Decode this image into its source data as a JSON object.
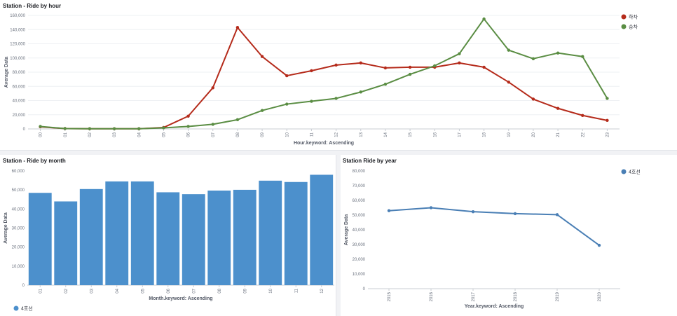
{
  "panels": {
    "hour": {
      "title": "Station - Ride by hour"
    },
    "month": {
      "title": "Station - Ride by month"
    },
    "year": {
      "title": "Station Ride by year"
    }
  },
  "chart_data": [
    {
      "type": "line",
      "title": "Station - Ride by hour",
      "xlabel": "Hour.keyword: Ascending",
      "ylabel": "Average Data",
      "categories": [
        "00",
        "01",
        "02",
        "03",
        "04",
        "05",
        "06",
        "07",
        "08",
        "09",
        "10",
        "11",
        "12",
        "13",
        "14",
        "15",
        "16",
        "17",
        "18",
        "19",
        "20",
        "21",
        "22",
        "23"
      ],
      "ylim": [
        0,
        160000
      ],
      "yticks": [
        0,
        20000,
        40000,
        60000,
        80000,
        100000,
        120000,
        140000,
        160000
      ],
      "ytick_labels": [
        "0",
        "20,000",
        "40,000",
        "60,000",
        "80,000",
        "100,000",
        "120,000",
        "140,000",
        "160,000"
      ],
      "grid": true,
      "legend": "top-right",
      "series": [
        {
          "name": "하차",
          "color": "#b52b1b",
          "values": [
            3000,
            500,
            300,
            300,
            300,
            2000,
            18000,
            58000,
            143000,
            102000,
            75000,
            82000,
            90000,
            93000,
            86000,
            87000,
            87000,
            93000,
            87000,
            66000,
            42000,
            29000,
            19000,
            12000
          ]
        },
        {
          "name": "승차",
          "color": "#5a8d43",
          "values": [
            3500,
            500,
            300,
            300,
            300,
            1500,
            3500,
            6500,
            13000,
            26000,
            35000,
            39000,
            43000,
            52000,
            63000,
            77000,
            89000,
            106000,
            155000,
            111000,
            99000,
            107000,
            102000,
            43000
          ]
        }
      ]
    },
    {
      "type": "bar",
      "title": "Station - Ride by month",
      "xlabel": "Month.keyword: Ascending",
      "ylabel": "Average Data",
      "categories": [
        "01",
        "02",
        "03",
        "04",
        "05",
        "06",
        "07",
        "08",
        "09",
        "10",
        "11",
        "12"
      ],
      "ylim": [
        0,
        60000
      ],
      "yticks": [
        0,
        10000,
        20000,
        30000,
        40000,
        50000,
        60000
      ],
      "ytick_labels": [
        "0",
        "10,000",
        "20,000",
        "30,000",
        "40,000",
        "50,000",
        "60,000"
      ],
      "grid": false,
      "legend": "bottom-left",
      "series": [
        {
          "name": "4호선",
          "color": "#4c90cc",
          "values": [
            48500,
            44000,
            50500,
            54500,
            54500,
            48800,
            47800,
            49700,
            50100,
            54900,
            54200,
            58000
          ]
        }
      ]
    },
    {
      "type": "line",
      "title": "Station Ride by year",
      "xlabel": "Year.keyword: Ascending",
      "ylabel": "Average Data",
      "categories": [
        "2015",
        "2016",
        "2017",
        "2018",
        "2019",
        "2020"
      ],
      "ylim": [
        0,
        80000
      ],
      "yticks": [
        0,
        10000,
        20000,
        30000,
        40000,
        50000,
        60000,
        70000,
        80000
      ],
      "ytick_labels": [
        "0",
        "10,000",
        "20,000",
        "30,000",
        "40,000",
        "50,000",
        "60,000",
        "70,000",
        "80,000"
      ],
      "grid": false,
      "legend": "top-right",
      "series": [
        {
          "name": "4호선",
          "color": "#4a7fb5",
          "values": [
            53000,
            55000,
            52300,
            51000,
            50300,
            29500
          ]
        }
      ]
    }
  ]
}
